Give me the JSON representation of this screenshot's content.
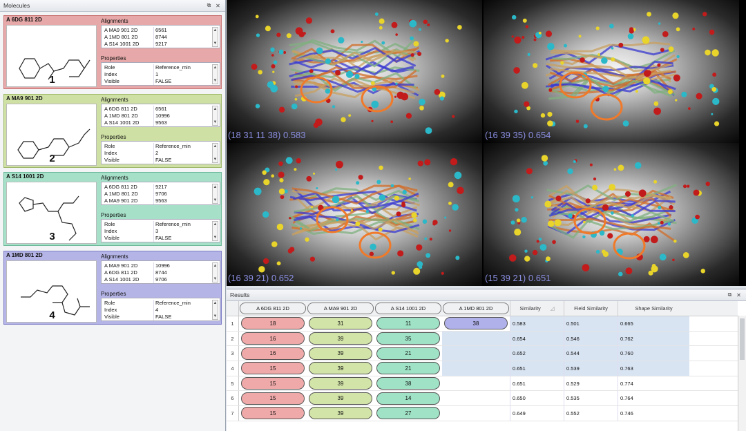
{
  "molecules_panel": {
    "title": "Molecules",
    "group_alignments": "Alignments",
    "group_properties": "Properties",
    "molecules": [
      {
        "name": "A 6DG 811 2D",
        "index_label": "1",
        "bg": "#e6a8a8",
        "border": "#c87474",
        "alignments": [
          [
            "A MA9 901 2D",
            "6561"
          ],
          [
            "A 1MD 801 2D",
            "8744"
          ],
          [
            "A S14 1001 2D",
            "9217"
          ]
        ],
        "properties": [
          [
            "Role",
            "Reference_min"
          ],
          [
            "Index",
            "1"
          ],
          [
            "Visible",
            "FALSE"
          ]
        ]
      },
      {
        "name": "A MA9 901 2D",
        "index_label": "2",
        "bg": "#cfe0a4",
        "border": "#9fb86a",
        "alignments": [
          [
            "A 6DG 811 2D",
            "6561"
          ],
          [
            "A 1MD 801 2D",
            "10996"
          ],
          [
            "A S14 1001 2D",
            "9563"
          ]
        ],
        "properties": [
          [
            "Role",
            "Reference_min"
          ],
          [
            "Index",
            "2"
          ],
          [
            "Visible",
            "FALSE"
          ]
        ]
      },
      {
        "name": "A S14 1001 2D",
        "index_label": "3",
        "bg": "#a6e0c9",
        "border": "#6cb899",
        "alignments": [
          [
            "A 6DG 811 2D",
            "9217"
          ],
          [
            "A 1MD 801 2D",
            "9706"
          ],
          [
            "A MA9 901 2D",
            "9563"
          ]
        ],
        "properties": [
          [
            "Role",
            "Reference_min"
          ],
          [
            "Index",
            "3"
          ],
          [
            "Visible",
            "FALSE"
          ]
        ]
      },
      {
        "name": "A 1MD 801 2D",
        "index_label": "4",
        "bg": "#b4b4e6",
        "border": "#7c7cc6",
        "alignments": [
          [
            "A MA9 901 2D",
            "10996"
          ],
          [
            "A 6DG 811 2D",
            "8744"
          ],
          [
            "A S14 1001 2D",
            "9706"
          ]
        ],
        "properties": [
          [
            "Role",
            "Reference_min"
          ],
          [
            "Index",
            "4"
          ],
          [
            "Visible",
            "FALSE"
          ]
        ]
      }
    ]
  },
  "viewer": {
    "labels": [
      "(18 31 11 38) 0.583",
      "(16 39 35) 0.654",
      "(16 39 21) 0.652",
      "(15 39 21) 0.651"
    ],
    "label_color": "#8a8ee0"
  },
  "results": {
    "title": "Results",
    "columns": [
      "A 6DG 811 2D",
      "A MA9 901 2D",
      "A S14 1001 2D",
      "A 1MD 801 2D",
      "Similarity",
      "Field Similarity",
      "Shape Similarity"
    ],
    "column_colors": [
      "#f0a9a9",
      "#d3e4a8",
      "#9fe2c6",
      "#b0b0ea"
    ],
    "rows": [
      {
        "n": "1",
        "a": "18",
        "b": "31",
        "c": "11",
        "d": "38",
        "sim": "0.583",
        "field": "0.501",
        "shape": "0.665"
      },
      {
        "n": "2",
        "a": "16",
        "b": "39",
        "c": "35",
        "d": "",
        "sim": "0.654",
        "field": "0.546",
        "shape": "0.762"
      },
      {
        "n": "3",
        "a": "16",
        "b": "39",
        "c": "21",
        "d": "",
        "sim": "0.652",
        "field": "0.544",
        "shape": "0.760"
      },
      {
        "n": "4",
        "a": "15",
        "b": "39",
        "c": "21",
        "d": "",
        "sim": "0.651",
        "field": "0.539",
        "shape": "0.763"
      },
      {
        "n": "5",
        "a": "15",
        "b": "39",
        "c": "38",
        "d": "",
        "sim": "0.651",
        "field": "0.529",
        "shape": "0.774"
      },
      {
        "n": "6",
        "a": "15",
        "b": "39",
        "c": "14",
        "d": "",
        "sim": "0.650",
        "field": "0.535",
        "shape": "0.764"
      },
      {
        "n": "7",
        "a": "15",
        "b": "39",
        "c": "27",
        "d": "",
        "sim": "0.649",
        "field": "0.552",
        "shape": "0.746"
      }
    ],
    "highlighted_rows": 4
  }
}
